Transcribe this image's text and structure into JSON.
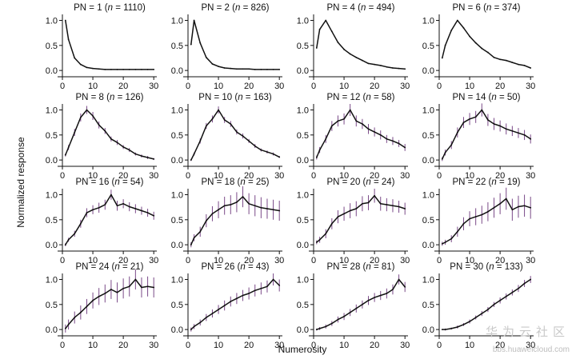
{
  "figure": {
    "ylabel": "Normalized response",
    "xlabel": "Numerosity",
    "watermark": {
      "title": "华为云社区",
      "url": "bbs.huaweicloud.com"
    }
  },
  "chart_data": {
    "type": "line",
    "grid": false,
    "layout": "4x4 small multiples",
    "x_ticks": [
      0,
      10,
      20,
      30
    ],
    "y_ticks": [
      0.0,
      0.5,
      1.0
    ],
    "y_tick_labels": [
      "0.0",
      "0.5",
      "1.0"
    ],
    "xlim": [
      0,
      31
    ],
    "ylim": [
      -0.03,
      1.12
    ],
    "panels": [
      {
        "title": "PN = 1 (n = 1110)",
        "title_plain": "PN = 1 (",
        "title_n": "n",
        "title_rest": " = 1110)",
        "x": [
          1,
          2,
          4,
          6,
          8,
          10,
          12,
          14,
          16,
          18,
          20,
          22,
          24,
          26,
          28,
          30
        ],
        "y": [
          1.0,
          0.62,
          0.25,
          0.12,
          0.06,
          0.04,
          0.03,
          0.02,
          0.02,
          0.02,
          0.02,
          0.02,
          0.02,
          0.02,
          0.02,
          0.02
        ],
        "err": []
      },
      {
        "title": "PN = 2 (n = 826)",
        "title_plain": "PN = 2 (",
        "title_n": "n",
        "title_rest": " = 826)",
        "x": [
          1,
          2,
          4,
          6,
          8,
          10,
          12,
          14,
          16,
          18,
          20,
          22,
          24,
          26,
          28,
          30
        ],
        "y": [
          0.52,
          1.0,
          0.55,
          0.26,
          0.13,
          0.08,
          0.05,
          0.04,
          0.03,
          0.03,
          0.03,
          0.02,
          0.02,
          0.02,
          0.02,
          0.02
        ],
        "err": []
      },
      {
        "title": "PN = 4 (n = 494)",
        "title_plain": "PN = 4 (",
        "title_n": "n",
        "title_rest": " = 494)",
        "x": [
          1,
          2,
          4,
          6,
          8,
          10,
          12,
          14,
          16,
          18,
          20,
          22,
          24,
          26,
          28,
          30
        ],
        "y": [
          0.45,
          0.82,
          1.0,
          0.78,
          0.56,
          0.42,
          0.33,
          0.26,
          0.2,
          0.14,
          0.12,
          0.1,
          0.07,
          0.05,
          0.04,
          0.03
        ],
        "err": []
      },
      {
        "title": "PN = 6 (n = 374)",
        "title_plain": "PN = 6 (",
        "title_n": "n",
        "title_rest": " = 374)",
        "x": [
          1,
          2,
          4,
          6,
          8,
          10,
          12,
          14,
          16,
          18,
          20,
          22,
          24,
          26,
          28,
          30
        ],
        "y": [
          0.25,
          0.5,
          0.8,
          1.0,
          0.85,
          0.68,
          0.55,
          0.44,
          0.36,
          0.26,
          0.22,
          0.2,
          0.16,
          0.12,
          0.1,
          0.05
        ],
        "err": []
      },
      {
        "title": "PN = 8 (n = 126)",
        "title_plain": "PN = 8 (",
        "title_n": "n",
        "title_rest": " = 126)",
        "x": [
          1,
          2,
          4,
          6,
          8,
          10,
          12,
          14,
          16,
          18,
          20,
          22,
          24,
          26,
          28,
          30
        ],
        "y": [
          0.1,
          0.25,
          0.55,
          0.85,
          1.0,
          0.88,
          0.7,
          0.58,
          0.42,
          0.35,
          0.26,
          0.2,
          0.12,
          0.08,
          0.05,
          0.02
        ],
        "err": [
          0.03,
          0.05,
          0.07,
          0.08,
          0.08,
          0.08,
          0.07,
          0.06,
          0.05,
          0.05,
          0.04,
          0.04,
          0.03,
          0.03,
          0.03,
          0.02
        ]
      },
      {
        "title": "PN = 10 (n = 163)",
        "title_plain": "PN = 10 (",
        "title_n": "n",
        "title_rest": " = 163)",
        "x": [
          1,
          2,
          4,
          6,
          8,
          10,
          12,
          14,
          16,
          18,
          20,
          22,
          24,
          26,
          28,
          30
        ],
        "y": [
          0.0,
          0.12,
          0.38,
          0.68,
          0.82,
          1.0,
          0.8,
          0.72,
          0.56,
          0.48,
          0.38,
          0.28,
          0.2,
          0.16,
          0.12,
          0.06
        ],
        "err": [
          0.02,
          0.03,
          0.05,
          0.06,
          0.07,
          0.07,
          0.06,
          0.06,
          0.05,
          0.05,
          0.04,
          0.04,
          0.03,
          0.03,
          0.03,
          0.02
        ]
      },
      {
        "title": "PN = 12 (n = 58)",
        "title_plain": "PN = 12 (",
        "title_n": "n",
        "title_rest": " = 58)",
        "x": [
          1,
          2,
          4,
          6,
          8,
          10,
          12,
          14,
          16,
          18,
          20,
          22,
          24,
          26,
          28,
          30
        ],
        "y": [
          0.05,
          0.2,
          0.42,
          0.68,
          0.78,
          0.82,
          1.0,
          0.78,
          0.72,
          0.62,
          0.56,
          0.5,
          0.42,
          0.38,
          0.33,
          0.25
        ],
        "err": [
          0.04,
          0.06,
          0.08,
          0.1,
          0.11,
          0.11,
          0.12,
          0.11,
          0.1,
          0.1,
          0.09,
          0.09,
          0.08,
          0.08,
          0.07,
          0.07
        ]
      },
      {
        "title": "PN = 14 (n = 50)",
        "title_plain": "PN = 14 (",
        "title_n": "n",
        "title_rest": " = 50)",
        "x": [
          1,
          2,
          4,
          6,
          8,
          10,
          12,
          14,
          16,
          18,
          20,
          22,
          24,
          26,
          28,
          30
        ],
        "y": [
          0.02,
          0.15,
          0.3,
          0.55,
          0.75,
          0.82,
          0.86,
          1.0,
          0.8,
          0.72,
          0.68,
          0.62,
          0.58,
          0.54,
          0.5,
          0.42
        ],
        "err": [
          0.04,
          0.06,
          0.08,
          0.1,
          0.11,
          0.12,
          0.12,
          0.13,
          0.12,
          0.12,
          0.11,
          0.11,
          0.1,
          0.1,
          0.1,
          0.09
        ]
      },
      {
        "title": "PN = 16 (n = 54)",
        "title_plain": "PN = 16 (",
        "title_n": "n",
        "title_rest": " = 54)",
        "x": [
          1,
          2,
          4,
          6,
          8,
          10,
          12,
          14,
          16,
          18,
          20,
          22,
          24,
          26,
          28,
          30
        ],
        "y": [
          0.0,
          0.1,
          0.22,
          0.42,
          0.64,
          0.7,
          0.74,
          0.8,
          1.0,
          0.78,
          0.82,
          0.76,
          0.72,
          0.68,
          0.64,
          0.58
        ],
        "err": [
          0.03,
          0.04,
          0.06,
          0.08,
          0.09,
          0.09,
          0.1,
          0.1,
          0.1,
          0.1,
          0.09,
          0.09,
          0.09,
          0.08,
          0.08,
          0.08
        ]
      },
      {
        "title": "PN = 18 (n = 25)",
        "title_plain": "PN = 18 (",
        "title_n": "n",
        "title_rest": " = 25)",
        "x": [
          1,
          2,
          4,
          6,
          8,
          10,
          12,
          14,
          16,
          18,
          20,
          22,
          24,
          26,
          28,
          30
        ],
        "y": [
          0.0,
          0.14,
          0.26,
          0.48,
          0.62,
          0.7,
          0.78,
          0.8,
          0.85,
          0.96,
          0.82,
          0.78,
          0.74,
          0.72,
          0.7,
          0.68
        ],
        "err": [
          0.05,
          0.07,
          0.1,
          0.13,
          0.15,
          0.17,
          0.18,
          0.19,
          0.2,
          0.21,
          0.21,
          0.21,
          0.21,
          0.2,
          0.2,
          0.2
        ]
      },
      {
        "title": "PN = 20 (n = 24)",
        "title_plain": "PN = 20 (",
        "title_n": "n",
        "title_rest": " = 24)",
        "x": [
          1,
          2,
          4,
          6,
          8,
          10,
          12,
          14,
          16,
          18,
          20,
          22,
          24,
          26,
          28,
          30
        ],
        "y": [
          0.05,
          0.1,
          0.22,
          0.42,
          0.56,
          0.62,
          0.68,
          0.72,
          0.82,
          0.84,
          0.98,
          0.82,
          0.8,
          0.78,
          0.76,
          0.72
        ],
        "err": [
          0.04,
          0.06,
          0.09,
          0.11,
          0.13,
          0.14,
          0.15,
          0.15,
          0.15,
          0.15,
          0.14,
          0.14,
          0.13,
          0.13,
          0.12,
          0.12
        ]
      },
      {
        "title": "PN = 22 (n = 19)",
        "title_plain": "PN = 22 (",
        "title_n": "n",
        "title_rest": " = 19)",
        "x": [
          1,
          2,
          4,
          6,
          8,
          10,
          12,
          14,
          16,
          18,
          20,
          22,
          24,
          26,
          28,
          30
        ],
        "y": [
          0.02,
          0.05,
          0.12,
          0.26,
          0.42,
          0.52,
          0.56,
          0.6,
          0.66,
          0.74,
          0.82,
          0.92,
          0.7,
          0.76,
          0.78,
          0.74
        ],
        "err": [
          0.04,
          0.05,
          0.07,
          0.1,
          0.13,
          0.15,
          0.17,
          0.18,
          0.19,
          0.2,
          0.21,
          0.22,
          0.22,
          0.22,
          0.22,
          0.22
        ]
      },
      {
        "title": "PN = 24 (n = 21)",
        "title_plain": "PN = 24 (",
        "title_n": "n",
        "title_rest": " = 21)",
        "x": [
          1,
          2,
          4,
          6,
          8,
          10,
          12,
          14,
          16,
          18,
          20,
          22,
          24,
          26,
          28,
          30
        ],
        "y": [
          0.02,
          0.1,
          0.24,
          0.34,
          0.46,
          0.58,
          0.66,
          0.72,
          0.8,
          0.74,
          0.82,
          0.86,
          1.0,
          0.84,
          0.86,
          0.84
        ],
        "err": [
          0.08,
          0.1,
          0.12,
          0.14,
          0.15,
          0.16,
          0.17,
          0.18,
          0.19,
          0.2,
          0.2,
          0.2,
          0.2,
          0.2,
          0.2,
          0.2
        ]
      },
      {
        "title": "PN = 26 (n = 43)",
        "title_plain": "PN = 26 (",
        "title_n": "n",
        "title_rest": " = 43)",
        "x": [
          1,
          2,
          4,
          6,
          8,
          10,
          12,
          14,
          16,
          18,
          20,
          22,
          24,
          26,
          28,
          30
        ],
        "y": [
          0.0,
          0.06,
          0.14,
          0.24,
          0.32,
          0.4,
          0.48,
          0.56,
          0.62,
          0.68,
          0.72,
          0.78,
          0.82,
          0.86,
          1.0,
          0.88
        ],
        "err": [
          0.04,
          0.05,
          0.06,
          0.07,
          0.08,
          0.09,
          0.1,
          0.1,
          0.11,
          0.11,
          0.12,
          0.12,
          0.12,
          0.12,
          0.12,
          0.12
        ]
      },
      {
        "title": "PN = 28 (n = 81)",
        "title_plain": "PN = 28 (",
        "title_n": "n",
        "title_rest": " = 81)",
        "x": [
          1,
          2,
          4,
          6,
          8,
          10,
          12,
          14,
          16,
          18,
          20,
          22,
          24,
          26,
          28,
          30
        ],
        "y": [
          0.0,
          0.02,
          0.06,
          0.12,
          0.2,
          0.26,
          0.34,
          0.42,
          0.5,
          0.58,
          0.64,
          0.68,
          0.72,
          0.8,
          1.0,
          0.85
        ],
        "err": [
          0.02,
          0.03,
          0.04,
          0.05,
          0.06,
          0.07,
          0.07,
          0.08,
          0.08,
          0.09,
          0.09,
          0.09,
          0.1,
          0.1,
          0.1,
          0.1
        ]
      },
      {
        "title": "PN = 30 (n = 133)",
        "title_plain": "PN = 30 (",
        "title_n": "n",
        "title_rest": " = 133)",
        "x": [
          1,
          2,
          4,
          6,
          8,
          10,
          12,
          14,
          16,
          18,
          20,
          22,
          24,
          26,
          28,
          30
        ],
        "y": [
          0.0,
          0.0,
          0.02,
          0.05,
          0.1,
          0.16,
          0.24,
          0.32,
          0.4,
          0.5,
          0.58,
          0.66,
          0.74,
          0.82,
          0.92,
          1.0
        ],
        "err": [
          0.01,
          0.02,
          0.02,
          0.03,
          0.03,
          0.04,
          0.04,
          0.05,
          0.05,
          0.05,
          0.06,
          0.06,
          0.06,
          0.07,
          0.07,
          0.07
        ]
      }
    ]
  }
}
